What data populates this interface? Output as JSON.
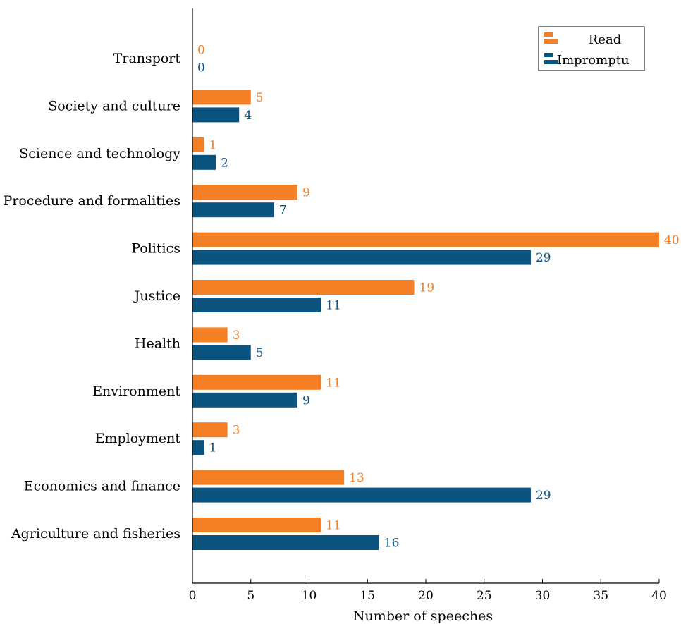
{
  "chart_data": {
    "type": "bar",
    "orientation": "horizontal",
    "categories": [
      "Transport",
      "Society and culture",
      "Science and technology",
      "Procedure and formalities",
      "Politics",
      "Justice",
      "Health",
      "Environment",
      "Employment",
      "Economics and finance",
      "Agriculture and fisheries"
    ],
    "series": [
      {
        "name": "Read",
        "color": "#f47f24",
        "values": [
          0,
          5,
          1,
          9,
          40,
          19,
          3,
          11,
          3,
          13,
          11
        ]
      },
      {
        "name": "Impromptu",
        "color": "#0c5480",
        "values": [
          0,
          4,
          2,
          7,
          29,
          11,
          5,
          9,
          1,
          29,
          16
        ]
      }
    ],
    "xlabel": "Number of speeches",
    "ylabel": "",
    "xlim": [
      0,
      40
    ],
    "xticks": [
      0,
      5,
      10,
      15,
      20,
      25,
      30,
      35,
      40
    ],
    "grid": false,
    "legend_position": "top-right",
    "data_labels": true
  }
}
